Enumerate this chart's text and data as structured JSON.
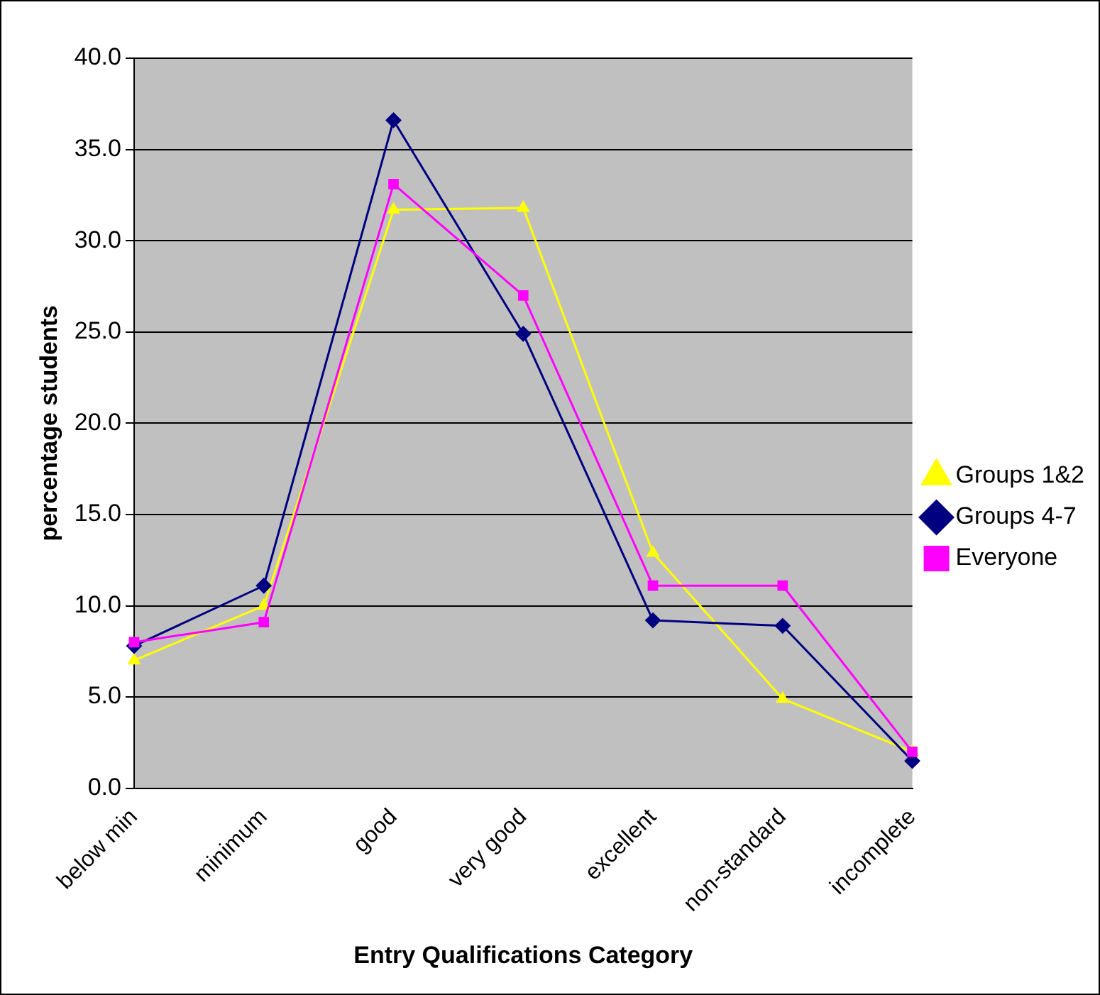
{
  "chart_data": {
    "type": "line",
    "xlabel": "Entry Qualifications Category",
    "ylabel": "percentage students",
    "categories": [
      "below min",
      "minimum",
      "good",
      "very good",
      "excellent",
      "non-standard",
      "incomplete"
    ],
    "series": [
      {
        "name": "Groups 1&2",
        "color": "#ffff00",
        "marker": "triangle",
        "values": [
          7.0,
          10.0,
          31.7,
          31.8,
          12.9,
          4.9,
          2.0
        ]
      },
      {
        "name": "Groups 4-7",
        "color": "#000080",
        "marker": "diamond",
        "values": [
          7.8,
          11.1,
          36.6,
          24.9,
          9.2,
          8.9,
          1.5
        ]
      },
      {
        "name": "Everyone",
        "color": "#ff00ff",
        "marker": "square",
        "values": [
          8.0,
          9.1,
          33.1,
          27.0,
          11.1,
          11.1,
          2.0
        ]
      }
    ],
    "ylim": [
      0,
      40
    ],
    "yticks": [
      {
        "value": 0,
        "label": "0.0"
      },
      {
        "value": 5,
        "label": "5.0"
      },
      {
        "value": 10,
        "label": "10.0"
      },
      {
        "value": 15,
        "label": "15.0"
      },
      {
        "value": 20,
        "label": "20.0"
      },
      {
        "value": 25,
        "label": "25.0"
      },
      {
        "value": 30,
        "label": "30.0"
      },
      {
        "value": 35,
        "label": "35.0"
      },
      {
        "value": 40,
        "label": "40.0"
      }
    ],
    "grid": "y",
    "legend": "right",
    "line_style": "solid"
  }
}
